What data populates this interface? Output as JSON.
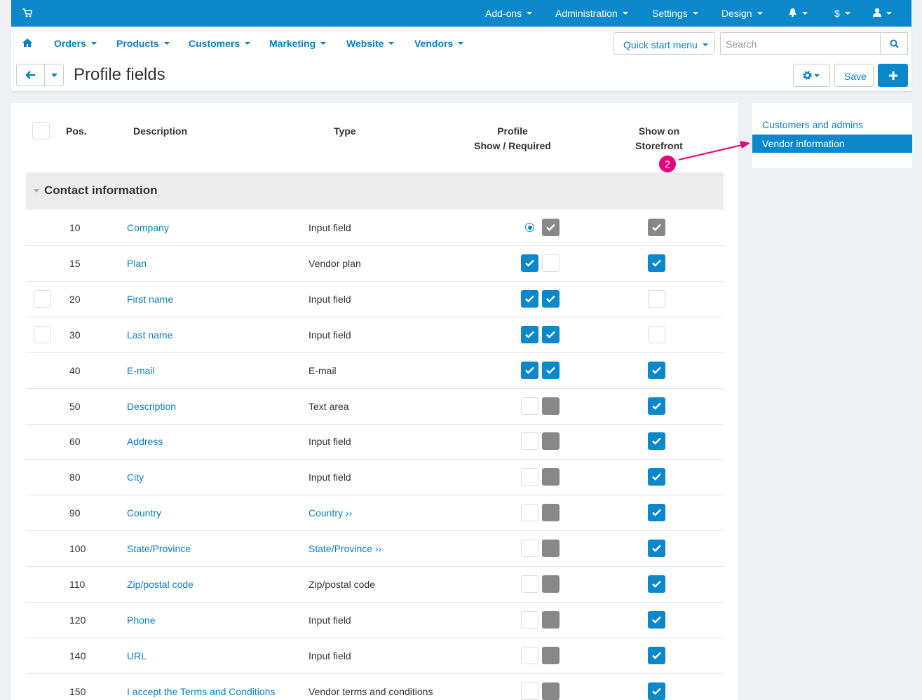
{
  "topbar": {
    "menus": [
      "Add-ons",
      "Administration",
      "Settings",
      "Design"
    ],
    "currency": "$"
  },
  "navbar": {
    "menus": [
      "Orders",
      "Products",
      "Customers",
      "Marketing",
      "Website",
      "Vendors"
    ],
    "quick_start": "Quick start menu",
    "search_placeholder": "Search"
  },
  "title": "Profile fields",
  "save": "Save",
  "table": {
    "headers": {
      "pos": "Pos.",
      "description": "Description",
      "type": "Type",
      "profile": "Profile",
      "show_required": "Show / Required",
      "show_on": "Show on",
      "storefront": "Storefront"
    },
    "group": "Contact information",
    "rows": [
      {
        "pos": 10,
        "description": "Company",
        "type": "Input field",
        "type_link": false,
        "row_checkbox": false,
        "show": "radio",
        "required": "gray-checked",
        "storefront": "gray-checked"
      },
      {
        "pos": 15,
        "description": "Plan",
        "type": "Vendor plan",
        "type_link": false,
        "row_checkbox": false,
        "show": "checked",
        "required": "unchecked",
        "storefront": "checked"
      },
      {
        "pos": 20,
        "description": "First name",
        "type": "Input field",
        "type_link": false,
        "row_checkbox": true,
        "show": "checked",
        "required": "checked",
        "storefront": "unchecked"
      },
      {
        "pos": 30,
        "description": "Last name",
        "type": "Input field",
        "type_link": false,
        "row_checkbox": true,
        "show": "checked",
        "required": "checked",
        "storefront": "unchecked"
      },
      {
        "pos": 40,
        "description": "E-mail",
        "type": "E-mail",
        "type_link": false,
        "row_checkbox": false,
        "show": "checked",
        "required": "checked",
        "storefront": "checked"
      },
      {
        "pos": 50,
        "description": "Description",
        "type": "Text area",
        "type_link": false,
        "row_checkbox": false,
        "show": "unchecked",
        "required": "disabled",
        "storefront": "checked"
      },
      {
        "pos": 60,
        "description": "Address",
        "type": "Input field",
        "type_link": false,
        "row_checkbox": false,
        "show": "unchecked",
        "required": "disabled",
        "storefront": "checked"
      },
      {
        "pos": 80,
        "description": "City",
        "type": "Input field",
        "type_link": false,
        "row_checkbox": false,
        "show": "unchecked",
        "required": "disabled",
        "storefront": "checked"
      },
      {
        "pos": 90,
        "description": "Country",
        "type": "Country ››",
        "type_link": true,
        "row_checkbox": false,
        "show": "unchecked",
        "required": "disabled",
        "storefront": "checked"
      },
      {
        "pos": 100,
        "description": "State/Province",
        "type": "State/Province ››",
        "type_link": true,
        "row_checkbox": false,
        "show": "unchecked",
        "required": "disabled",
        "storefront": "checked"
      },
      {
        "pos": 110,
        "description": "Zip/postal code",
        "type": "Zip/postal code",
        "type_link": false,
        "row_checkbox": false,
        "show": "unchecked",
        "required": "disabled",
        "storefront": "checked"
      },
      {
        "pos": 120,
        "description": "Phone",
        "type": "Input field",
        "type_link": false,
        "row_checkbox": false,
        "show": "unchecked",
        "required": "disabled",
        "storefront": "checked"
      },
      {
        "pos": 140,
        "description": "URL",
        "type": "Input field",
        "type_link": false,
        "row_checkbox": false,
        "show": "unchecked",
        "required": "disabled",
        "storefront": "checked"
      },
      {
        "pos": 150,
        "description": "I accept the Terms and Conditions",
        "type": "Vendor terms and conditions",
        "type_link": false,
        "row_checkbox": false,
        "show": "unchecked",
        "required": "disabled",
        "storefront": "checked"
      }
    ]
  },
  "sidebar": {
    "items": [
      "Customers and admins",
      "Vendor information"
    ],
    "active": 1
  },
  "annotation": "2"
}
